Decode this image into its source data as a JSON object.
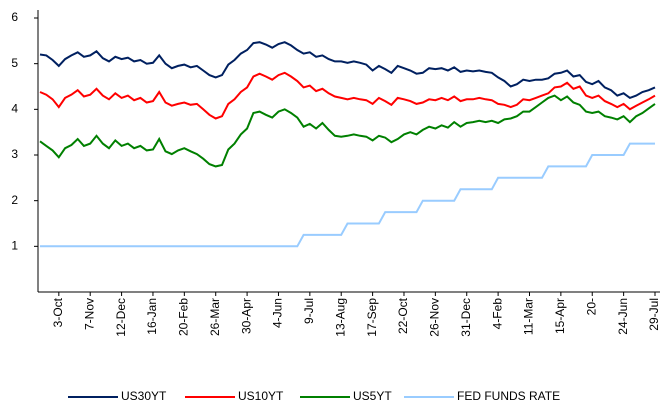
{
  "chart_data": {
    "type": "line",
    "categories": [
      null,
      null,
      null,
      "3-Oct",
      null,
      null,
      null,
      null,
      "7-Nov",
      null,
      null,
      null,
      null,
      "12-Dec",
      null,
      null,
      null,
      null,
      "16-Jan",
      null,
      null,
      null,
      null,
      "20-Feb",
      null,
      null,
      null,
      null,
      "26-Mar",
      null,
      null,
      null,
      null,
      "30-Apr",
      null,
      null,
      null,
      null,
      "4-Jun",
      null,
      null,
      null,
      null,
      "9-Jul",
      null,
      null,
      null,
      null,
      "13-Aug",
      null,
      null,
      null,
      null,
      "17-Sep",
      null,
      null,
      null,
      null,
      "22-Oct",
      null,
      null,
      null,
      null,
      "26-Nov",
      null,
      null,
      null,
      null,
      "31-Dec",
      null,
      null,
      null,
      null,
      "4-Feb",
      null,
      null,
      null,
      null,
      "11-Mar",
      null,
      null,
      null,
      null,
      "15-Apr",
      null,
      null,
      null,
      null,
      "20-",
      null,
      null,
      null,
      null,
      "24-Jun",
      null,
      null,
      null,
      null,
      "29-Jul"
    ],
    "series": [
      {
        "name": "US30YT",
        "color": "#002060",
        "values": [
          5.2,
          5.18,
          5.08,
          4.95,
          5.1,
          5.18,
          5.25,
          5.15,
          5.18,
          5.27,
          5.12,
          5.05,
          5.15,
          5.1,
          5.13,
          5.05,
          5.08,
          5.0,
          5.02,
          5.18,
          5.0,
          4.9,
          4.95,
          4.98,
          4.92,
          4.95,
          4.85,
          4.75,
          4.7,
          4.75,
          4.98,
          5.08,
          5.22,
          5.3,
          5.45,
          5.47,
          5.42,
          5.35,
          5.43,
          5.47,
          5.4,
          5.3,
          5.22,
          5.25,
          5.15,
          5.18,
          5.1,
          5.05,
          5.05,
          5.02,
          5.05,
          5.02,
          4.98,
          4.85,
          4.95,
          4.88,
          4.8,
          4.95,
          4.9,
          4.85,
          4.78,
          4.8,
          4.9,
          4.88,
          4.9,
          4.85,
          4.92,
          4.82,
          4.85,
          4.83,
          4.85,
          4.82,
          4.8,
          4.7,
          4.62,
          4.5,
          4.55,
          4.65,
          4.62,
          4.65,
          4.65,
          4.68,
          4.78,
          4.8,
          4.85,
          4.72,
          4.75,
          4.6,
          4.55,
          4.62,
          4.48,
          4.42,
          4.3,
          4.35,
          4.25,
          4.3,
          4.38,
          4.42,
          4.48
        ]
      },
      {
        "name": "US10YT",
        "color": "#ff0000",
        "values": [
          4.38,
          4.32,
          4.22,
          4.05,
          4.25,
          4.32,
          4.42,
          4.28,
          4.32,
          4.45,
          4.3,
          4.22,
          4.35,
          4.25,
          4.3,
          4.2,
          4.25,
          4.15,
          4.18,
          4.38,
          4.15,
          4.08,
          4.12,
          4.15,
          4.1,
          4.12,
          4.0,
          3.88,
          3.8,
          3.85,
          4.12,
          4.22,
          4.38,
          4.48,
          4.72,
          4.78,
          4.72,
          4.65,
          4.75,
          4.8,
          4.72,
          4.62,
          4.48,
          4.52,
          4.4,
          4.45,
          4.35,
          4.28,
          4.25,
          4.22,
          4.25,
          4.22,
          4.2,
          4.12,
          4.25,
          4.18,
          4.1,
          4.25,
          4.22,
          4.18,
          4.12,
          4.15,
          4.22,
          4.2,
          4.25,
          4.2,
          4.28,
          4.18,
          4.22,
          4.22,
          4.25,
          4.22,
          4.2,
          4.12,
          4.1,
          4.05,
          4.1,
          4.22,
          4.2,
          4.25,
          4.3,
          4.35,
          4.48,
          4.5,
          4.58,
          4.45,
          4.5,
          4.3,
          4.25,
          4.3,
          4.18,
          4.12,
          4.05,
          4.12,
          4.0,
          4.08,
          4.15,
          4.22,
          4.3
        ]
      },
      {
        "name": "US5YT",
        "color": "#008000",
        "values": [
          3.3,
          3.2,
          3.1,
          2.95,
          3.15,
          3.22,
          3.35,
          3.2,
          3.25,
          3.42,
          3.25,
          3.15,
          3.32,
          3.2,
          3.25,
          3.15,
          3.2,
          3.1,
          3.12,
          3.35,
          3.08,
          3.02,
          3.1,
          3.15,
          3.08,
          3.02,
          2.92,
          2.8,
          2.75,
          2.78,
          3.12,
          3.25,
          3.45,
          3.58,
          3.92,
          3.95,
          3.88,
          3.82,
          3.95,
          4.0,
          3.92,
          3.82,
          3.62,
          3.68,
          3.58,
          3.7,
          3.55,
          3.42,
          3.4,
          3.42,
          3.45,
          3.42,
          3.4,
          3.32,
          3.42,
          3.38,
          3.28,
          3.35,
          3.45,
          3.5,
          3.45,
          3.55,
          3.62,
          3.58,
          3.65,
          3.6,
          3.72,
          3.62,
          3.7,
          3.72,
          3.75,
          3.72,
          3.75,
          3.7,
          3.78,
          3.8,
          3.85,
          3.95,
          3.95,
          4.05,
          4.15,
          4.25,
          4.3,
          4.2,
          4.28,
          4.15,
          4.1,
          3.95,
          3.92,
          3.95,
          3.85,
          3.82,
          3.78,
          3.85,
          3.72,
          3.85,
          3.92,
          4.02,
          4.12
        ]
      },
      {
        "name": "FED FUNDS RATE",
        "color": "#99ccff",
        "values": [
          1,
          1,
          1,
          1,
          1,
          1,
          1,
          1,
          1,
          1,
          1,
          1,
          1,
          1,
          1,
          1,
          1,
          1,
          1,
          1,
          1,
          1,
          1,
          1,
          1,
          1,
          1,
          1,
          1,
          1,
          1,
          1,
          1,
          1,
          1,
          1,
          1,
          1,
          1,
          1,
          1,
          1,
          1.25,
          1.25,
          1.25,
          1.25,
          1.25,
          1.25,
          1.25,
          1.5,
          1.5,
          1.5,
          1.5,
          1.5,
          1.5,
          1.75,
          1.75,
          1.75,
          1.75,
          1.75,
          1.75,
          2,
          2,
          2,
          2,
          2,
          2,
          2.25,
          2.25,
          2.25,
          2.25,
          2.25,
          2.25,
          2.5,
          2.5,
          2.5,
          2.5,
          2.5,
          2.5,
          2.5,
          2.5,
          2.75,
          2.75,
          2.75,
          2.75,
          2.75,
          2.75,
          2.75,
          3,
          3,
          3,
          3,
          3,
          3,
          3.25,
          3.25,
          3.25,
          3.25,
          3.25
        ]
      }
    ],
    "ylim": [
      0,
      6
    ],
    "yticks": [
      1,
      2,
      3,
      4,
      5,
      6
    ],
    "grid": false,
    "legend": "bottom"
  }
}
